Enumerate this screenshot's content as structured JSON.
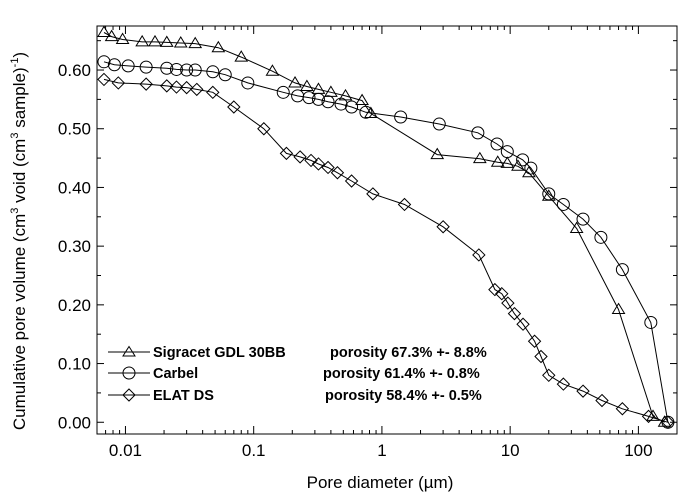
{
  "chart_data": {
    "type": "scatter",
    "xlabel": "Pore diameter (µm)",
    "ylabel_parts": {
      "a": "Cumulative pore volume (cm",
      "b": "3",
      "c": " void (cm",
      "d": "3",
      "e": " sample)",
      "f": "-1",
      "g": ")"
    },
    "x_scale": "log",
    "xlim": [
      0.006,
      200
    ],
    "ylim": [
      -0.02,
      0.675
    ],
    "x_ticks": [
      {
        "value": 0.01,
        "label": "0.01"
      },
      {
        "value": 0.1,
        "label": "0.1"
      },
      {
        "value": 1,
        "label": "1"
      },
      {
        "value": 10,
        "label": "10"
      },
      {
        "value": 100,
        "label": "100"
      }
    ],
    "y_ticks": [
      {
        "value": 0.0,
        "label": "0.00"
      },
      {
        "value": 0.1,
        "label": "0.10"
      },
      {
        "value": 0.2,
        "label": "0.20"
      },
      {
        "value": 0.3,
        "label": "0.30"
      },
      {
        "value": 0.4,
        "label": "0.40"
      },
      {
        "value": 0.5,
        "label": "0.50"
      },
      {
        "value": 0.6,
        "label": "0.60"
      }
    ],
    "grid": false,
    "legend_position": "bottom-left",
    "series": [
      {
        "name": "Sigracet GDL 30BB",
        "note": "porosity 67.3% +- 8.8%",
        "marker": "triangle",
        "points": [
          [
            0.0068,
            0.664
          ],
          [
            0.0078,
            0.657
          ],
          [
            0.0095,
            0.652
          ],
          [
            0.0135,
            0.648
          ],
          [
            0.017,
            0.648
          ],
          [
            0.021,
            0.647
          ],
          [
            0.027,
            0.646
          ],
          [
            0.035,
            0.645
          ],
          [
            0.053,
            0.638
          ],
          [
            0.08,
            0.622
          ],
          [
            0.14,
            0.598
          ],
          [
            0.21,
            0.578
          ],
          [
            0.26,
            0.572
          ],
          [
            0.32,
            0.567
          ],
          [
            0.4,
            0.562
          ],
          [
            0.52,
            0.556
          ],
          [
            0.7,
            0.548
          ],
          [
            0.82,
            0.526
          ],
          [
            2.7,
            0.456
          ],
          [
            5.8,
            0.449
          ],
          [
            8,
            0.443
          ],
          [
            9.5,
            0.441
          ],
          [
            11.5,
            0.436
          ],
          [
            14,
            0.425
          ],
          [
            20,
            0.385
          ],
          [
            33,
            0.33
          ],
          [
            70,
            0.192
          ],
          [
            130,
            0.01
          ],
          [
            160,
            0.0
          ]
        ]
      },
      {
        "name": "Carbel",
        "note": "porosity 61.4% +- 0.8%",
        "marker": "circle",
        "points": [
          [
            0.0068,
            0.614
          ],
          [
            0.0082,
            0.609
          ],
          [
            0.0105,
            0.607
          ],
          [
            0.0145,
            0.605
          ],
          [
            0.021,
            0.603
          ],
          [
            0.025,
            0.601
          ],
          [
            0.03,
            0.6
          ],
          [
            0.035,
            0.6
          ],
          [
            0.048,
            0.597
          ],
          [
            0.06,
            0.592
          ],
          [
            0.09,
            0.578
          ],
          [
            0.17,
            0.562
          ],
          [
            0.22,
            0.556
          ],
          [
            0.27,
            0.553
          ],
          [
            0.32,
            0.55
          ],
          [
            0.38,
            0.546
          ],
          [
            0.48,
            0.542
          ],
          [
            0.58,
            0.537
          ],
          [
            0.75,
            0.528
          ],
          [
            1.4,
            0.52
          ],
          [
            2.8,
            0.508
          ],
          [
            5.6,
            0.493
          ],
          [
            7.9,
            0.474
          ],
          [
            9.5,
            0.461
          ],
          [
            12.5,
            0.447
          ],
          [
            14.5,
            0.433
          ],
          [
            20,
            0.389
          ],
          [
            26,
            0.371
          ],
          [
            37,
            0.346
          ],
          [
            51,
            0.315
          ],
          [
            75,
            0.26
          ],
          [
            125,
            0.17
          ],
          [
            170,
            0.0
          ]
        ]
      },
      {
        "name": "ELAT DS",
        "note": "porosity 58.4% +- 0.5%",
        "marker": "diamond",
        "points": [
          [
            0.0068,
            0.584
          ],
          [
            0.0088,
            0.578
          ],
          [
            0.0145,
            0.576
          ],
          [
            0.021,
            0.573
          ],
          [
            0.025,
            0.571
          ],
          [
            0.03,
            0.57
          ],
          [
            0.036,
            0.567
          ],
          [
            0.048,
            0.562
          ],
          [
            0.07,
            0.537
          ],
          [
            0.12,
            0.5
          ],
          [
            0.18,
            0.458
          ],
          [
            0.23,
            0.452
          ],
          [
            0.28,
            0.446
          ],
          [
            0.32,
            0.44
          ],
          [
            0.38,
            0.434
          ],
          [
            0.45,
            0.425
          ],
          [
            0.58,
            0.411
          ],
          [
            0.85,
            0.389
          ],
          [
            1.5,
            0.371
          ],
          [
            3,
            0.333
          ],
          [
            5.7,
            0.285
          ],
          [
            7.6,
            0.226
          ],
          [
            8.6,
            0.219
          ],
          [
            9.6,
            0.203
          ],
          [
            10.8,
            0.185
          ],
          [
            12.6,
            0.167
          ],
          [
            15.5,
            0.138
          ],
          [
            17.4,
            0.112
          ],
          [
            20,
            0.08
          ],
          [
            26,
            0.065
          ],
          [
            37,
            0.053
          ],
          [
            52,
            0.037
          ],
          [
            75,
            0.023
          ],
          [
            120,
            0.01
          ],
          [
            170,
            0.0
          ]
        ]
      }
    ]
  }
}
